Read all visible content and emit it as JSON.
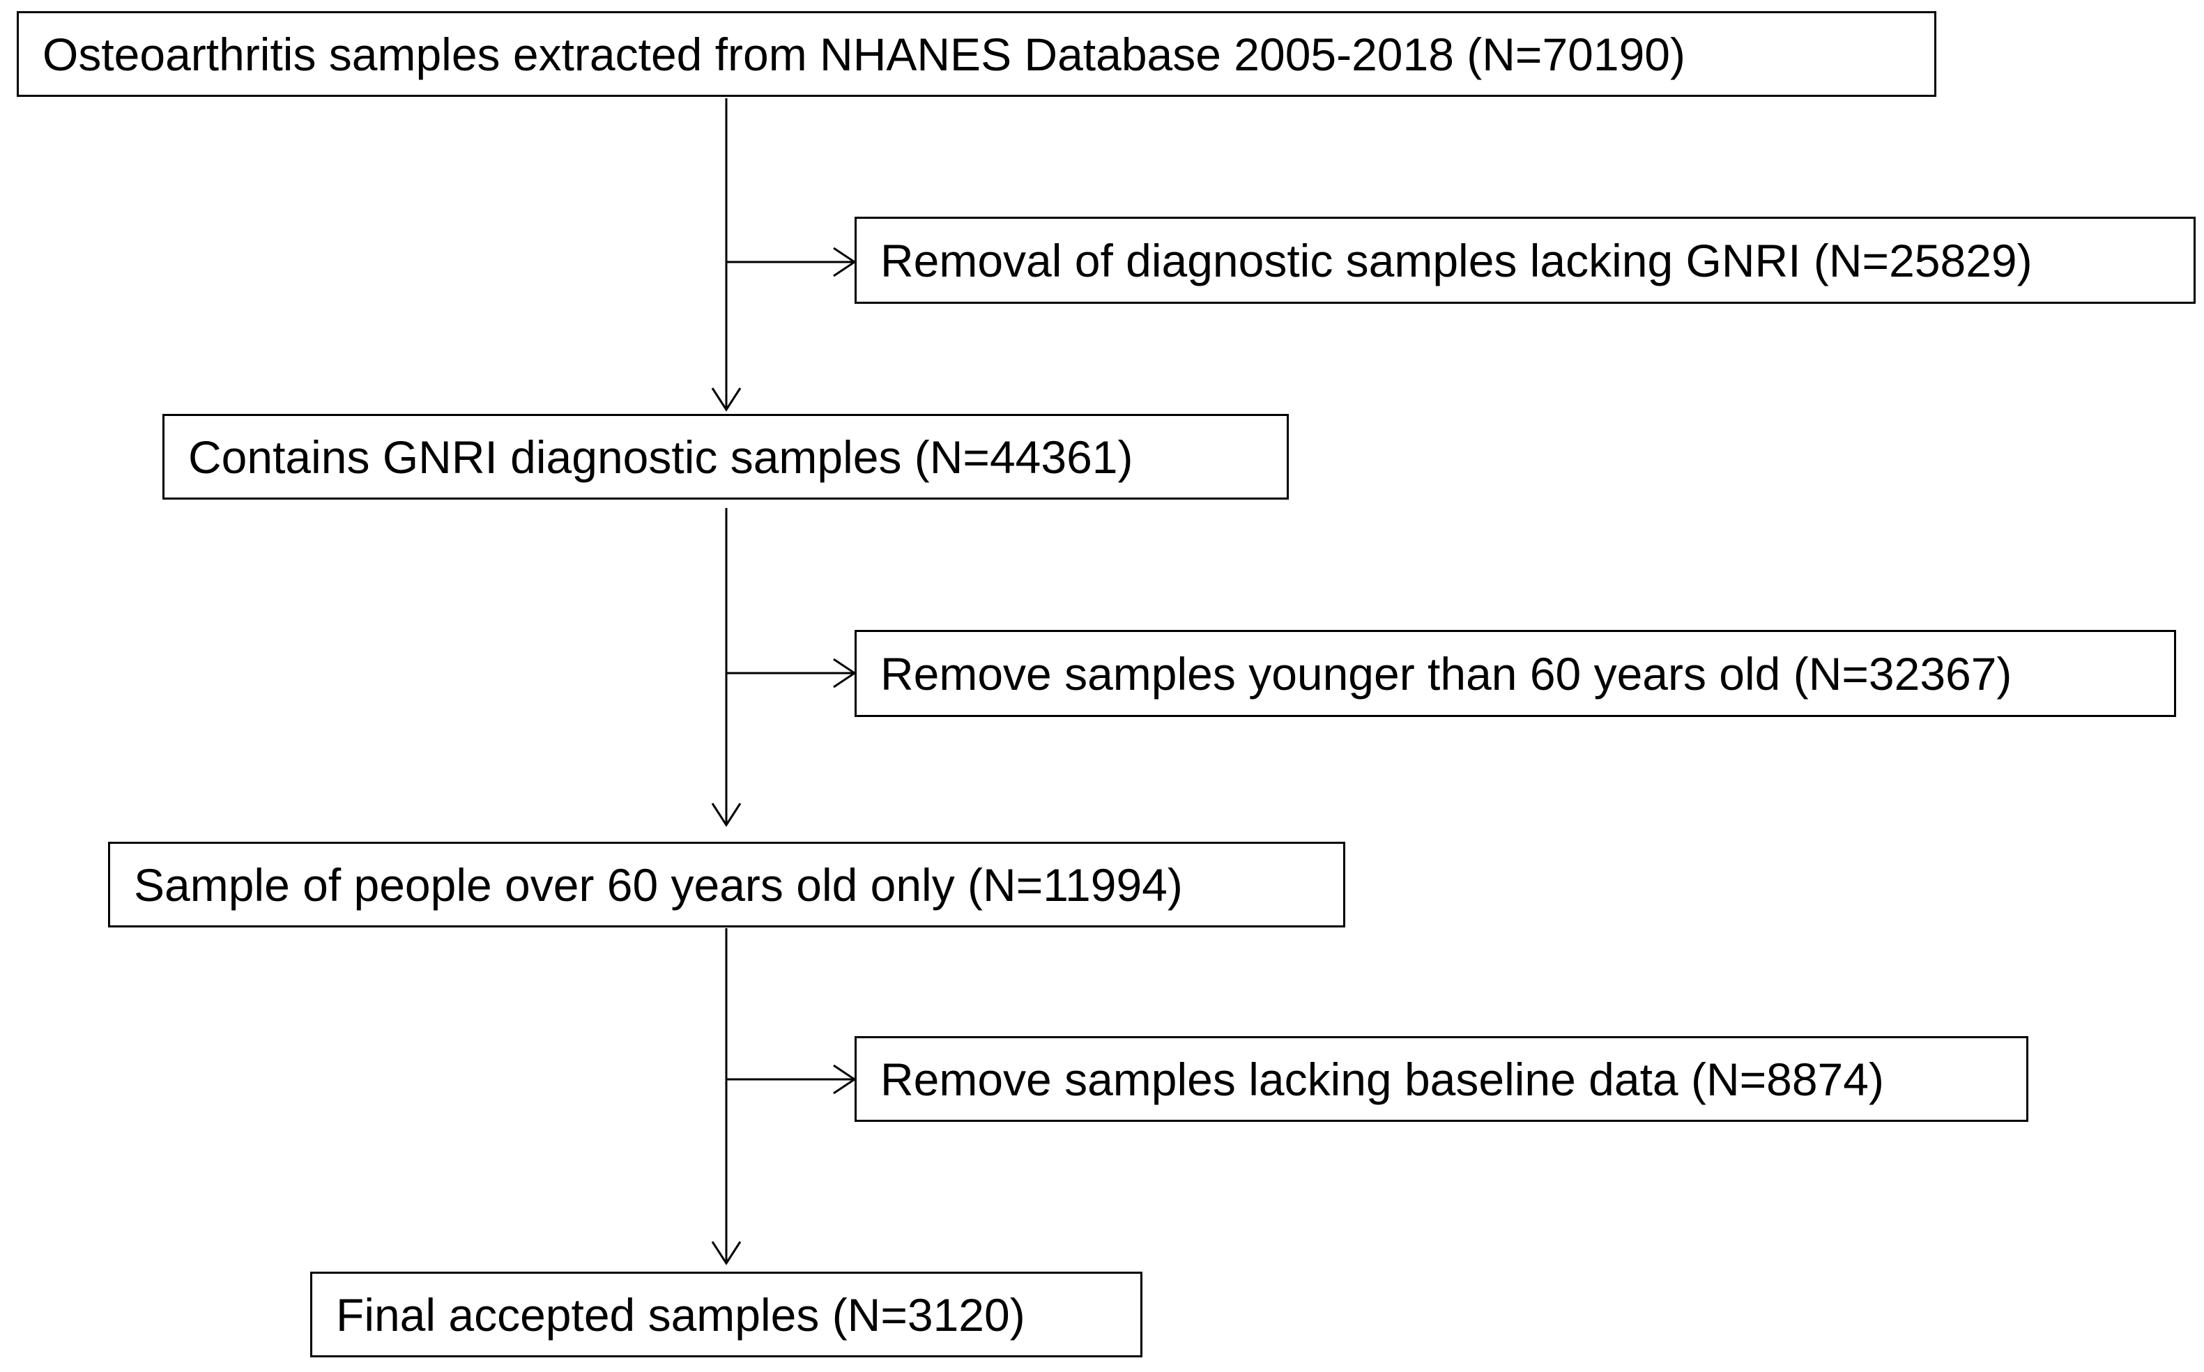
{
  "flowchart": {
    "main_steps": [
      "Osteoarthritis samples extracted from NHANES Database 2005-2018 (N=70190)",
      "Contains GNRI diagnostic samples (N=44361)",
      "Sample of people over 60 years old only (N=11994)",
      "Final accepted samples (N=3120)"
    ],
    "exclusions": [
      "Removal of diagnostic samples lacking GNRI (N=25829)",
      "Remove samples younger than 60 years old (N=32367)",
      "Remove samples lacking baseline data (N=8874)"
    ]
  },
  "colors": {
    "line": "#000000",
    "background": "#ffffff"
  }
}
